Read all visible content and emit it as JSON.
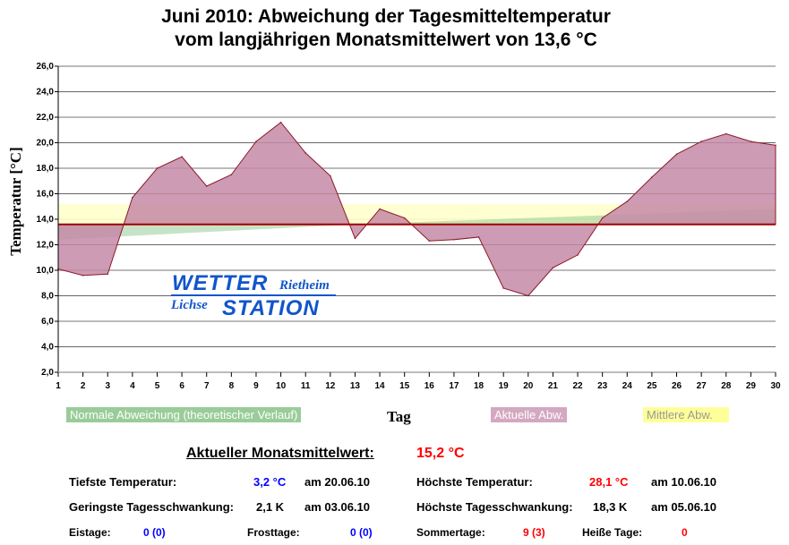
{
  "title_line1": "Juni 2010: Abweichung der Tagesmitteltemperatur",
  "title_line2": "vom langjährigen Monatsmittelwert von 13,6 °C",
  "chart_data": {
    "type": "area",
    "xlabel": "Tag",
    "ylabel": "Temperatur [°C]",
    "ylim": [
      2,
      26
    ],
    "yticks": [
      "2,0",
      "4,0",
      "6,0",
      "8,0",
      "10,0",
      "12,0",
      "14,0",
      "16,0",
      "18,0",
      "20,0",
      "22,0",
      "24,0",
      "26,0"
    ],
    "x": [
      1,
      2,
      3,
      4,
      5,
      6,
      7,
      8,
      9,
      10,
      11,
      12,
      13,
      14,
      15,
      16,
      17,
      18,
      19,
      20,
      21,
      22,
      23,
      24,
      25,
      26,
      27,
      28,
      29,
      30
    ],
    "baseline": 13.6,
    "series": [
      {
        "name": "Aktuelle Abw.",
        "color": "#c48aa6",
        "values": [
          10.1,
          9.6,
          9.7,
          15.7,
          18.0,
          18.9,
          16.6,
          17.5,
          20.1,
          21.6,
          19.2,
          17.4,
          12.5,
          14.8,
          14.1,
          12.3,
          12.4,
          12.6,
          8.6,
          8.0,
          10.2,
          11.2,
          14.1,
          15.4,
          17.3,
          19.1,
          20.1,
          20.7,
          20.1,
          19.8
        ]
      },
      {
        "name": "Normale Abweichung (theoretischer Verlauf)",
        "color": "#99cc99",
        "start": 12.4,
        "mid_day": 13,
        "mid": 13.6,
        "end": 14.8
      },
      {
        "name": "Mittlere Abw.",
        "color": "#ffffcc",
        "value": 15.2
      }
    ],
    "grid": true
  },
  "legend": {
    "normal": "Normale Abweichung (theoretischer Verlauf)",
    "actual": "Aktuelle Abw.",
    "mean": "Mittlere Abw."
  },
  "logo": {
    "wetter": "WETTER",
    "rietheim": "Rietheim",
    "lichse": "Lichse",
    "station": "STATION"
  },
  "stats": {
    "month_mean_label": "Aktueller Monatsmittelwert:",
    "month_mean": "15,2 °C",
    "min_temp_label": "Tiefste Temperatur:",
    "min_temp": "3,2 °C",
    "min_temp_date": "am 20.06.10",
    "max_temp_label": "Höchste Temperatur:",
    "max_temp": "28,1 °C",
    "max_temp_date": "am 10.06.10",
    "min_range_label": "Geringste Tagesschwankung:",
    "min_range": "2,1 K",
    "min_range_date": "am 03.06.10",
    "max_range_label": "Höchste Tagesschwankung:",
    "max_range": "18,3 K",
    "max_range_date": "am 05.06.10",
    "ice_label": "Eistage:",
    "ice": "0 (0)",
    "frost_label": "Frosttage:",
    "frost": "0 (0)",
    "summer_label": "Sommertage:",
    "summer": "9 (3)",
    "hot_label": "Heiße Tage:",
    "hot": "0"
  }
}
